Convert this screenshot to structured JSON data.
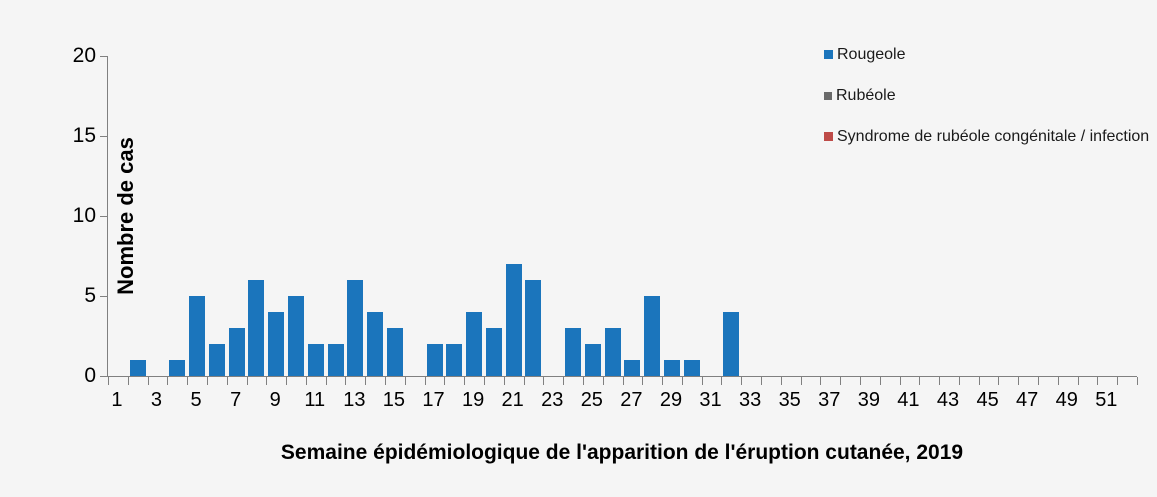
{
  "chart_data": {
    "type": "bar",
    "title": "",
    "xlabel": "Semaine épidémiologique de l'apparition de l'éruption cutanée, 2019",
    "ylabel": "Nombre de cas",
    "x": [
      1,
      2,
      3,
      4,
      5,
      6,
      7,
      8,
      9,
      10,
      11,
      12,
      13,
      14,
      15,
      16,
      17,
      18,
      19,
      20,
      21,
      22,
      23,
      24,
      25,
      26,
      27,
      28,
      29,
      30,
      31,
      32,
      33,
      34,
      35,
      36,
      37,
      38,
      39,
      40,
      41,
      42,
      43,
      44,
      45,
      46,
      47,
      48,
      49,
      50,
      51,
      52
    ],
    "series": [
      {
        "name": "Rougeole",
        "color": "#1b75bc",
        "values": [
          0,
          1,
          0,
          1,
          5,
          2,
          3,
          6,
          4,
          5,
          2,
          2,
          6,
          4,
          3,
          0,
          2,
          2,
          4,
          3,
          7,
          6,
          0,
          3,
          2,
          3,
          1,
          5,
          1,
          1,
          0,
          4,
          0,
          0,
          0,
          0,
          0,
          0,
          0,
          0,
          0,
          0,
          0,
          0,
          0,
          0,
          0,
          0,
          0,
          0,
          0,
          0
        ]
      },
      {
        "name": "Rubéole",
        "color": "#6a6a6a",
        "values": [
          0,
          0,
          0,
          0,
          0,
          0,
          0,
          0,
          0,
          0,
          0,
          0,
          0,
          0,
          0,
          0,
          0,
          0,
          0,
          0,
          0,
          0,
          0,
          0,
          0,
          0,
          0,
          0,
          0,
          0,
          0,
          0,
          0,
          0,
          0,
          0,
          0,
          0,
          0,
          0,
          0,
          0,
          0,
          0,
          0,
          0,
          0,
          0,
          0,
          0,
          0,
          0
        ]
      },
      {
        "name": "Syndrome de rubéole congénitale / infection",
        "color": "#be4b48",
        "values": [
          0,
          0,
          0,
          0,
          0,
          0,
          0,
          0,
          0,
          0,
          0,
          0,
          0,
          0,
          0,
          0,
          0,
          0,
          0,
          0,
          0,
          0,
          0,
          0,
          0,
          0,
          0,
          0,
          0,
          0,
          0,
          0,
          0,
          0,
          0,
          0,
          0,
          0,
          0,
          0,
          0,
          0,
          0,
          0,
          0,
          0,
          0,
          0,
          0,
          0,
          0,
          0
        ]
      }
    ],
    "ylim": [
      0,
      20
    ],
    "yticks": [
      0,
      5,
      10,
      15,
      20
    ],
    "xtick_labels": [
      1,
      3,
      5,
      7,
      9,
      11,
      13,
      15,
      17,
      19,
      21,
      23,
      25,
      27,
      29,
      31,
      33,
      35,
      37,
      39,
      41,
      43,
      45,
      47,
      49,
      51
    ],
    "legend_position": "top-right",
    "grid": false,
    "background_color": "#f5f5f5",
    "axis_color": "#808080"
  }
}
